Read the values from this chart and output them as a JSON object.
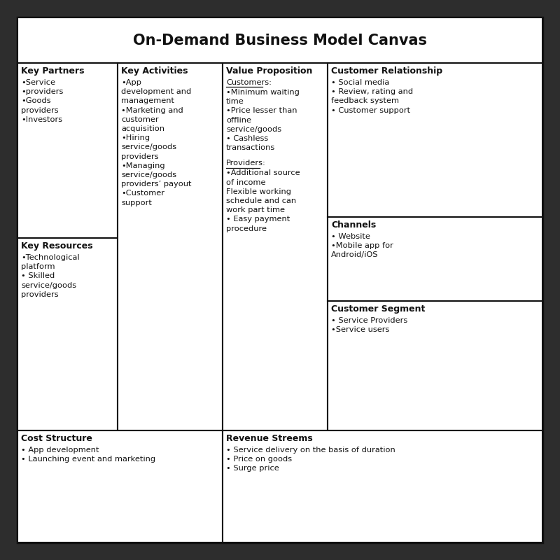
{
  "title": "On-Demand Business Model Canvas",
  "background": "#2d2d2d",
  "canvas_bg": "#ffffff",
  "border_color": "#111111",
  "text_color": "#111111",
  "title_fontsize": 15,
  "cell_fontsize": 8.2,
  "header_fontsize": 9.0,
  "cells": {
    "title": "On-Demand Business Model Canvas",
    "key_partners_header": "Key Partners",
    "key_partners_content": "•Service\n•providers\n•Goods\nproviders\n•Investors",
    "key_resources_header": "Key Resources",
    "key_resources_content": "•Technological\nplatform\n• Skilled\nservice/goods\nproviders",
    "key_activities_header": "Key Activities",
    "key_activities_content": "•App\ndevelopment and\nmanagement\n•Marketing and\ncustomer\nacquisition\n•Hiring\nservice/goods\nproviders\n•Managing\nservice/goods\nproviders’ payout\n•Customer\nsupport",
    "value_proposition_header": "Value Proposition",
    "value_proposition_content_customers": "Customers:",
    "value_proposition_content": "•Minimum waiting\ntime\n•Price lesser than\noffline\nservice/goods\n• Cashless\ntransactions",
    "value_proposition_content_providers": "Providers:",
    "value_proposition_content2": "•Additional source\nof income\nFlexible working\nschedule and can\nwork part time\n• Easy payment\nprocedure",
    "customer_relationship_header": "Customer Relationship",
    "customer_relationship_content": "• Social media\n• Review, rating and\nfeedback system\n• Customer support",
    "channels_header": "Channels",
    "channels_content": "• Website\n•Mobile app for\nAndroid/iOS",
    "customer_segment_header": "Customer Segment",
    "customer_segment_content": "• Service Providers\n•Service users",
    "cost_structure_header": "Cost Structure",
    "cost_structure_content": "• App development\n• Launching event and marketing",
    "revenue_streams_header": "Revenue Streems",
    "revenue_streams_content": "• Service delivery on the basis of duration\n• Price on goods\n• Surge price"
  }
}
